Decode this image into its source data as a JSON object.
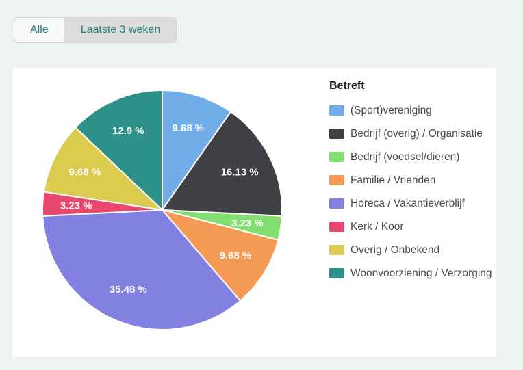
{
  "tabs": {
    "all_label": "Alle",
    "recent_label": "Laatste 3 weken"
  },
  "chart_data": {
    "type": "pie",
    "title": "Betreft",
    "legend_position": "right",
    "start_angle": "12 o'clock",
    "direction": "clockwise",
    "label_format": "percent",
    "slices": [
      {
        "label": "(Sport)vereniging",
        "value": 9.68,
        "display": "9.68 %",
        "color": "#71ade9"
      },
      {
        "label": "Bedrijf (overig) / Organisatie",
        "value": 16.13,
        "display": "16.13 %",
        "color": "#3f4044"
      },
      {
        "label": "Bedrijf (voedsel/dieren)",
        "value": 3.23,
        "display": "3.23 %",
        "color": "#82de70"
      },
      {
        "label": "Familie / Vrienden",
        "value": 9.68,
        "display": "9.68 %",
        "color": "#f49a54"
      },
      {
        "label": "Horeca / Vakantieverblijf",
        "value": 35.48,
        "display": "35.48 %",
        "color": "#8280e0"
      },
      {
        "label": "Kerk / Koor",
        "value": 3.23,
        "display": "3.23 %",
        "color": "#e8486e"
      },
      {
        "label": "Overig / Onbekend",
        "value": 9.68,
        "display": "9.68 %",
        "color": "#dbcb4e"
      },
      {
        "label": "Woonvoorziening / Verzorging",
        "value": 12.9,
        "display": "12.9 %",
        "color": "#2d918a"
      }
    ]
  },
  "colors": {
    "page_background": "#eef3f2",
    "panel_background": "#ffffff",
    "tab_text": "#2a7e82",
    "tab_active_background": "#f8faf9",
    "tab_inactive_background": "#dcdcdc",
    "slice_border": "#ffffff",
    "legend_text": "#4a4a4a"
  }
}
